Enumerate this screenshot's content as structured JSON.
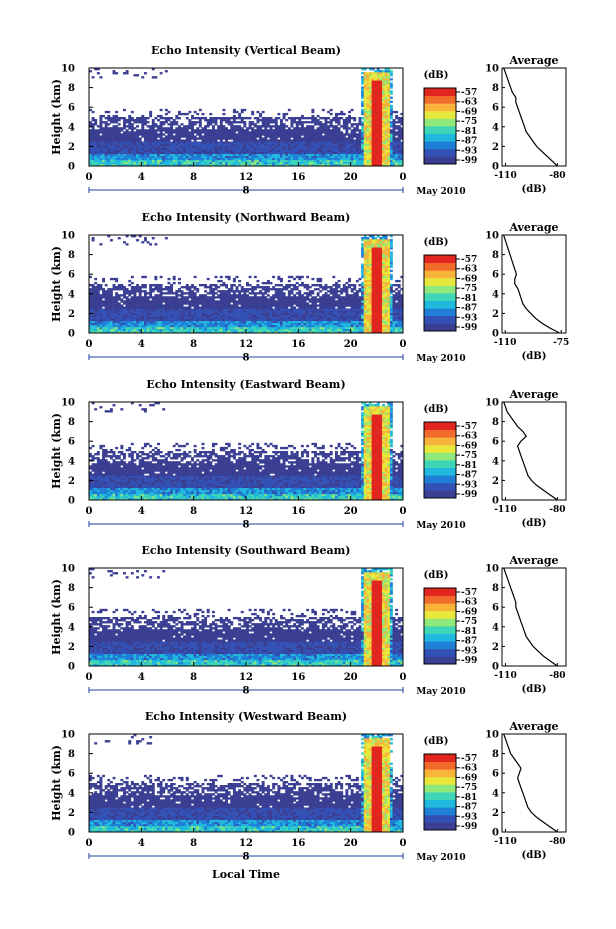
{
  "figure": {
    "xaxis_label": "Local Time",
    "date_label": "May 2010"
  },
  "colorbar": {
    "unit": "(dB)",
    "ticks": [
      "-57",
      "-63",
      "-69",
      "-75",
      "-81",
      "-87",
      "-93",
      "-99"
    ],
    "colors": [
      "#3a3f93",
      "#3350b5",
      "#1f7fd6",
      "#21b8de",
      "#3fd6b8",
      "#8ee87a",
      "#e8e83c",
      "#f8b43a",
      "#f06a2a",
      "#e0261f"
    ]
  },
  "chart_data": [
    {
      "type": "heatmap",
      "title": "Echo Intensity (Vertical Beam)",
      "ylabel": "Height (km)",
      "xlabel": "Local Time",
      "x_ticks": [
        "0",
        "4",
        "8",
        "12",
        "16",
        "20",
        "0"
      ],
      "y_ticks": [
        "0",
        "2",
        "4",
        "6",
        "8",
        "10"
      ],
      "ylim": [
        0,
        10
      ],
      "day_marker": "8",
      "date_label": "May 2010",
      "colorbar_label": "(dB)",
      "colorbar_ticks": [
        "-57",
        "-63",
        "-69",
        "-75",
        "-81",
        "-87",
        "-93",
        "-99"
      ],
      "average_profile": {
        "title": "Average",
        "xlabel": "(dB)",
        "x_ticks": [
          "-110",
          "-80"
        ],
        "xlim": [
          -112,
          -75
        ],
        "y_ticks": [
          "0",
          "2",
          "4",
          "6",
          "8",
          "10"
        ],
        "height_km": [
          0,
          0.5,
          1,
          1.5,
          2,
          2.5,
          3,
          3.5,
          4,
          4.5,
          5,
          5.5,
          6,
          6.5,
          7,
          7.5,
          8,
          8.5,
          9,
          9.5,
          10
        ],
        "intensity_db": [
          -80,
          -83,
          -86,
          -89,
          -92,
          -94,
          -96,
          -98,
          -99,
          -100,
          -101,
          -102,
          -103,
          -104,
          -104,
          -106,
          -107,
          -108,
          -109,
          -110,
          -111
        ]
      }
    },
    {
      "type": "heatmap",
      "title": "Echo Intensity (Northward Beam)",
      "ylabel": "Height (km)",
      "xlabel": "Local Time",
      "x_ticks": [
        "0",
        "4",
        "8",
        "12",
        "16",
        "20",
        "0"
      ],
      "y_ticks": [
        "0",
        "2",
        "4",
        "6",
        "8",
        "10"
      ],
      "ylim": [
        0,
        10
      ],
      "day_marker": "8",
      "date_label": "May 2010",
      "colorbar_label": "(dB)",
      "colorbar_ticks": [
        "-57",
        "-63",
        "-69",
        "-75",
        "-81",
        "-87",
        "-93",
        "-99"
      ],
      "average_profile": {
        "title": "Average",
        "xlabel": "(dB)",
        "x_ticks": [
          "-110",
          "-75"
        ],
        "xlim": [
          -112,
          -72
        ],
        "y_ticks": [
          "0",
          "2",
          "4",
          "6",
          "8",
          "10"
        ],
        "height_km": [
          0,
          0.5,
          1,
          1.5,
          2,
          2.5,
          3,
          3.5,
          4,
          4.5,
          5,
          5.5,
          6,
          6.5,
          7,
          7.5,
          8,
          8.5,
          9,
          9.5,
          10
        ],
        "intensity_db": [
          -76,
          -82,
          -87,
          -91,
          -94,
          -97,
          -99,
          -100,
          -101,
          -102,
          -104,
          -104,
          -103,
          -104,
          -105,
          -106,
          -107,
          -108,
          -109,
          -110,
          -111
        ]
      }
    },
    {
      "type": "heatmap",
      "title": "Echo Intensity (Eastward Beam)",
      "ylabel": "Height (km)",
      "xlabel": "Local Time",
      "x_ticks": [
        "0",
        "4",
        "8",
        "12",
        "16",
        "20",
        "0"
      ],
      "y_ticks": [
        "0",
        "2",
        "4",
        "6",
        "8",
        "10"
      ],
      "ylim": [
        0,
        10
      ],
      "day_marker": "8",
      "date_label": "May 2010",
      "colorbar_label": "(dB)",
      "colorbar_ticks": [
        "-57",
        "-63",
        "-69",
        "-75",
        "-81",
        "-87",
        "-93",
        "-99"
      ],
      "average_profile": {
        "title": "Average",
        "xlabel": "(dB)",
        "x_ticks": [
          "-110",
          "-80"
        ],
        "xlim": [
          -112,
          -75
        ],
        "y_ticks": [
          "0",
          "2",
          "4",
          "6",
          "8",
          "10"
        ],
        "height_km": [
          0,
          0.5,
          1,
          1.5,
          2,
          2.5,
          3,
          3.5,
          4,
          4.5,
          5,
          5.5,
          6,
          6.5,
          7,
          7.5,
          8,
          8.5,
          9,
          9.5,
          10
        ],
        "intensity_db": [
          -80,
          -84,
          -88,
          -92,
          -95,
          -97,
          -98,
          -99,
          -100,
          -101,
          -102,
          -103,
          -101,
          -98,
          -100,
          -103,
          -105,
          -107,
          -109,
          -110,
          -111
        ]
      }
    },
    {
      "type": "heatmap",
      "title": "Echo Intensity (Southward Beam)",
      "ylabel": "Height (km)",
      "xlabel": "Local Time",
      "x_ticks": [
        "0",
        "4",
        "8",
        "12",
        "16",
        "20",
        "0"
      ],
      "y_ticks": [
        "0",
        "2",
        "4",
        "6",
        "8",
        "10"
      ],
      "ylim": [
        0,
        10
      ],
      "day_marker": "8",
      "date_label": "May 2010",
      "colorbar_label": "(dB)",
      "colorbar_ticks": [
        "-57",
        "-63",
        "-69",
        "-75",
        "-81",
        "-87",
        "-93",
        "-99"
      ],
      "average_profile": {
        "title": "Average",
        "xlabel": "(dB)",
        "x_ticks": [
          "-110",
          "-80"
        ],
        "xlim": [
          -112,
          -75
        ],
        "y_ticks": [
          "0",
          "2",
          "4",
          "6",
          "8",
          "10"
        ],
        "height_km": [
          0,
          0.5,
          1,
          1.5,
          2,
          2.5,
          3,
          3.5,
          4,
          4.5,
          5,
          5.5,
          6,
          6.5,
          7,
          7.5,
          8,
          8.5,
          9,
          9.5,
          10
        ],
        "intensity_db": [
          -80,
          -84,
          -88,
          -91,
          -94,
          -96,
          -98,
          -99,
          -100,
          -101,
          -102,
          -103,
          -104,
          -104,
          -105,
          -106,
          -107,
          -108,
          -109,
          -110,
          -111
        ]
      }
    },
    {
      "type": "heatmap",
      "title": "Echo Intensity (Westward Beam)",
      "ylabel": "Height (km)",
      "xlabel": "Local Time",
      "x_ticks": [
        "0",
        "4",
        "8",
        "12",
        "16",
        "20",
        "0"
      ],
      "y_ticks": [
        "0",
        "2",
        "4",
        "6",
        "8",
        "10"
      ],
      "ylim": [
        0,
        10
      ],
      "day_marker": "8",
      "date_label": "May 2010",
      "colorbar_label": "(dB)",
      "colorbar_ticks": [
        "-57",
        "-63",
        "-69",
        "-75",
        "-81",
        "-87",
        "-93",
        "-99"
      ],
      "average_profile": {
        "title": "Average",
        "xlabel": "(dB)",
        "x_ticks": [
          "-110",
          "-80"
        ],
        "xlim": [
          -112,
          -75
        ],
        "y_ticks": [
          "0",
          "2",
          "4",
          "6",
          "8",
          "10"
        ],
        "height_km": [
          0,
          0.5,
          1,
          1.5,
          2,
          2.5,
          3,
          3.5,
          4,
          4.5,
          5,
          5.5,
          6,
          6.5,
          7,
          7.5,
          8,
          8.5,
          9,
          9.5,
          10
        ],
        "intensity_db": [
          -80,
          -84,
          -88,
          -92,
          -95,
          -97,
          -98,
          -99,
          -100,
          -101,
          -102,
          -103,
          -102,
          -101,
          -103,
          -105,
          -107,
          -108,
          -109,
          -110,
          -111
        ]
      }
    }
  ]
}
